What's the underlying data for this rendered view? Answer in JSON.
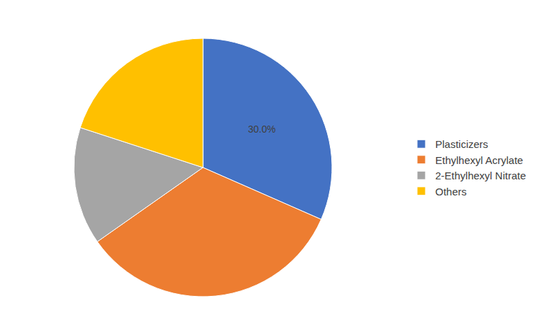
{
  "chart_data": {
    "type": "pie",
    "categories": [
      "Plasticizers",
      "Ethylhexyl Acrylate",
      "2-Ethylhexyl Nitrate",
      "Others"
    ],
    "values": [
      30.0,
      32,
      14,
      19
    ],
    "value_labels": [
      "30.0%",
      null,
      null,
      null
    ],
    "colors": [
      "#4472c4",
      "#ed7d31",
      "#a5a5a5",
      "#ffc000"
    ],
    "data_labels": true,
    "legend": "right"
  }
}
